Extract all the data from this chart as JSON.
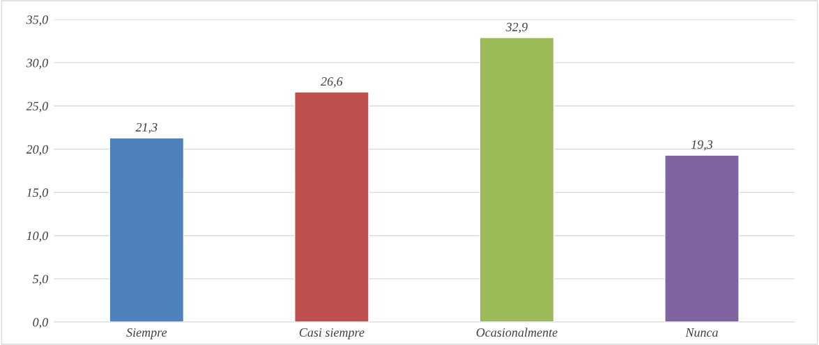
{
  "chart_data": {
    "type": "bar",
    "categories": [
      "Siempre",
      "Casi siempre",
      "Ocasionalmente",
      "Nunca"
    ],
    "values": [
      21.3,
      26.6,
      32.9,
      19.3
    ],
    "colors": [
      "#4f81bd",
      "#c0504d",
      "#9bbb59",
      "#8064a2"
    ],
    "value_labels": [
      "21,3",
      "26,6",
      "32,9",
      "19,3"
    ],
    "ylim": [
      0,
      35
    ],
    "yticks": [
      {
        "value": 0,
        "label": "0,0"
      },
      {
        "value": 5,
        "label": "5,0"
      },
      {
        "value": 10,
        "label": "10,0"
      },
      {
        "value": 15,
        "label": "15,0"
      },
      {
        "value": 20,
        "label": "20,0"
      },
      {
        "value": 25,
        "label": "25,0"
      },
      {
        "value": 30,
        "label": "30,0"
      },
      {
        "value": 35,
        "label": "35,0"
      }
    ],
    "grid": "y"
  }
}
